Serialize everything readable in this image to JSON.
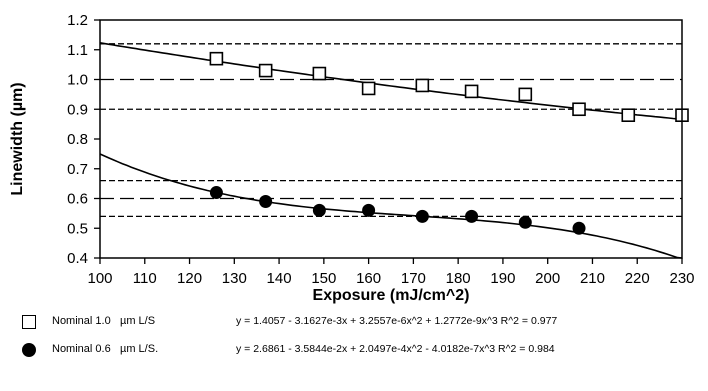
{
  "chart_data": {
    "type": "scatter",
    "title": "",
    "xlabel": "Exposure (mJ/cm^2)",
    "ylabel": "Linewidth (µm)",
    "xlim": [
      100,
      230
    ],
    "ylim": [
      0.4,
      1.2
    ],
    "x_ticks": [
      100,
      110,
      120,
      130,
      140,
      150,
      160,
      170,
      180,
      190,
      200,
      210,
      220,
      230
    ],
    "y_ticks": [
      0.4,
      0.5,
      0.6,
      0.7,
      0.8,
      0.9,
      1.0,
      1.1,
      1.2
    ],
    "x_tick_labels": [
      "100",
      "110",
      "120",
      "130",
      "140",
      "150",
      "160",
      "170",
      "180",
      "190",
      "200",
      "210",
      "220",
      "230"
    ],
    "y_tick_labels": [
      "0.4",
      "0.5",
      "0.6",
      "0.7",
      "0.8",
      "0.9",
      "1.0",
      "1.1",
      "1.2"
    ],
    "grid": false,
    "series": [
      {
        "name": "Nominal 1.0",
        "unit": "µm L/S",
        "marker": "open-square",
        "x": [
          126,
          137,
          149,
          160,
          172,
          183,
          195,
          207,
          218,
          230
        ],
        "y": [
          1.07,
          1.03,
          1.02,
          0.97,
          0.98,
          0.96,
          0.95,
          0.9,
          0.88,
          0.88
        ],
        "fit_equation": "y = 1.4057 - 3.1627e-3x + 3.2557e-6x^2 + 1.2772e-9x^3   R^2 = 0.977",
        "fit_coefficients": [
          1.4057,
          -0.0031627,
          3.2557e-06,
          1.2772e-09
        ]
      },
      {
        "name": "Nominal 0.6",
        "unit": "µm L/S.",
        "marker": "filled-circle",
        "x": [
          126,
          137,
          149,
          160,
          172,
          183,
          195,
          207
        ],
        "y": [
          0.62,
          0.59,
          0.56,
          0.56,
          0.54,
          0.54,
          0.52,
          0.5
        ],
        "fit_equation": "y = 2.6861 - 3.5844e-2x + 2.0497e-4x^2 - 4.0182e-7x^3   R^2 = 0.984",
        "fit_coefficients": [
          2.6861,
          -0.035844,
          0.00020497,
          -4.0182e-07
        ]
      }
    ],
    "reference_lines": [
      {
        "y": 1.12,
        "style": "short-dash"
      },
      {
        "y": 1.0,
        "style": "long-dash"
      },
      {
        "y": 0.9,
        "style": "short-dash"
      },
      {
        "y": 0.66,
        "style": "short-dash"
      },
      {
        "y": 0.6,
        "style": "long-dash"
      },
      {
        "y": 0.54,
        "style": "short-dash"
      }
    ]
  }
}
